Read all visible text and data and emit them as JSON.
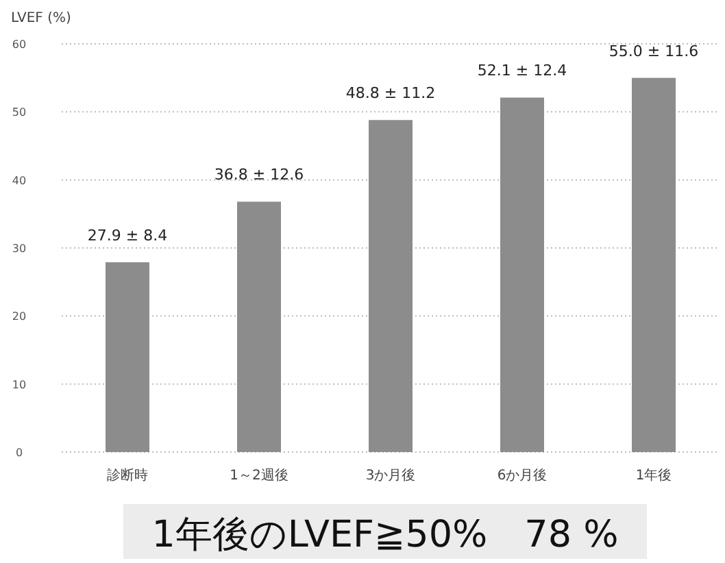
{
  "chart_data": {
    "type": "bar",
    "ylabel": "LVEF (%)",
    "categories": [
      "診断時",
      "1～2週後",
      "3か月後",
      "6か月後",
      "1年後"
    ],
    "values": [
      27.9,
      36.8,
      48.8,
      52.1,
      55.0
    ],
    "value_labels": [
      "27.9 ± 8.4",
      "36.8 ± 12.6",
      "48.8 ± 11.2",
      "52.1 ± 12.4",
      "55.0 ± 11.6"
    ],
    "color": "#8c8c8c",
    "ylim": [
      0,
      60
    ],
    "yticks": [
      0,
      10,
      20,
      30,
      40,
      50,
      60
    ],
    "grid": "y",
    "annotations": [
      "1年後のLVEF≧50%　78 %"
    ]
  }
}
